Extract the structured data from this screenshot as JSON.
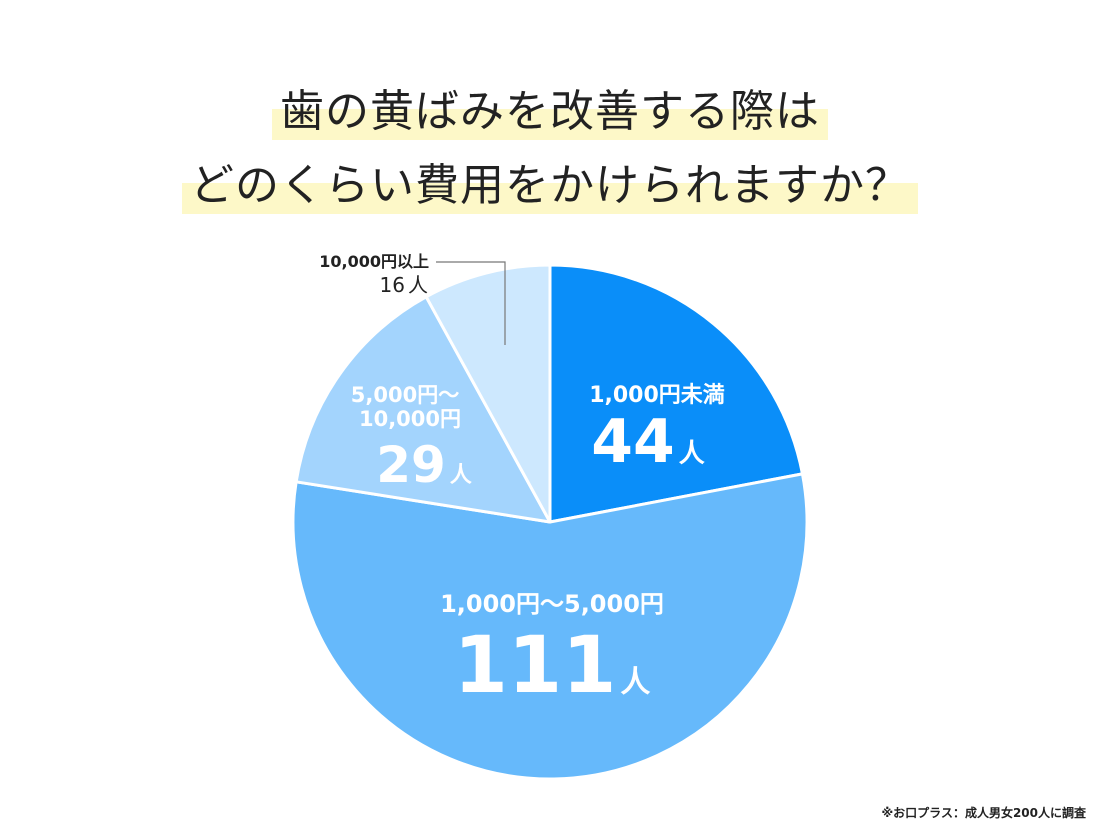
{
  "title": {
    "line1": "歯の黄ばみを改善する際は",
    "line2": "どのくらい費用をかけられますか？"
  },
  "colors": {
    "highlight": "#fdf8c8",
    "slice_dark": "#0a8ef9",
    "slice_mid": "#66b9fb",
    "slice_light": "#a3d4fd",
    "slice_lightest": "#cde8fe",
    "label_outside": "#222222",
    "leader_line": "#777777"
  },
  "chart_data": {
    "type": "pie",
    "start": "top",
    "direction": "clockwise",
    "slices": [
      {
        "label": "1,000円未満",
        "value": 44,
        "value_text": "44",
        "unit": "人",
        "color": "#0a8ef9"
      },
      {
        "label": "1,000円～5,000円",
        "value": 111,
        "value_text": "111",
        "unit": "人",
        "color": "#66b9fb"
      },
      {
        "label": "5,000円～\n10,000円",
        "value": 29,
        "value_text": "29",
        "unit": "人",
        "color": "#a3d4fd"
      },
      {
        "label": "10,000円以上",
        "value": 16,
        "value_text": "16",
        "unit": "人",
        "color": "#cde8fe"
      }
    ],
    "total": 200
  },
  "footnote": "※お口プラス：成人男女200人に調査"
}
